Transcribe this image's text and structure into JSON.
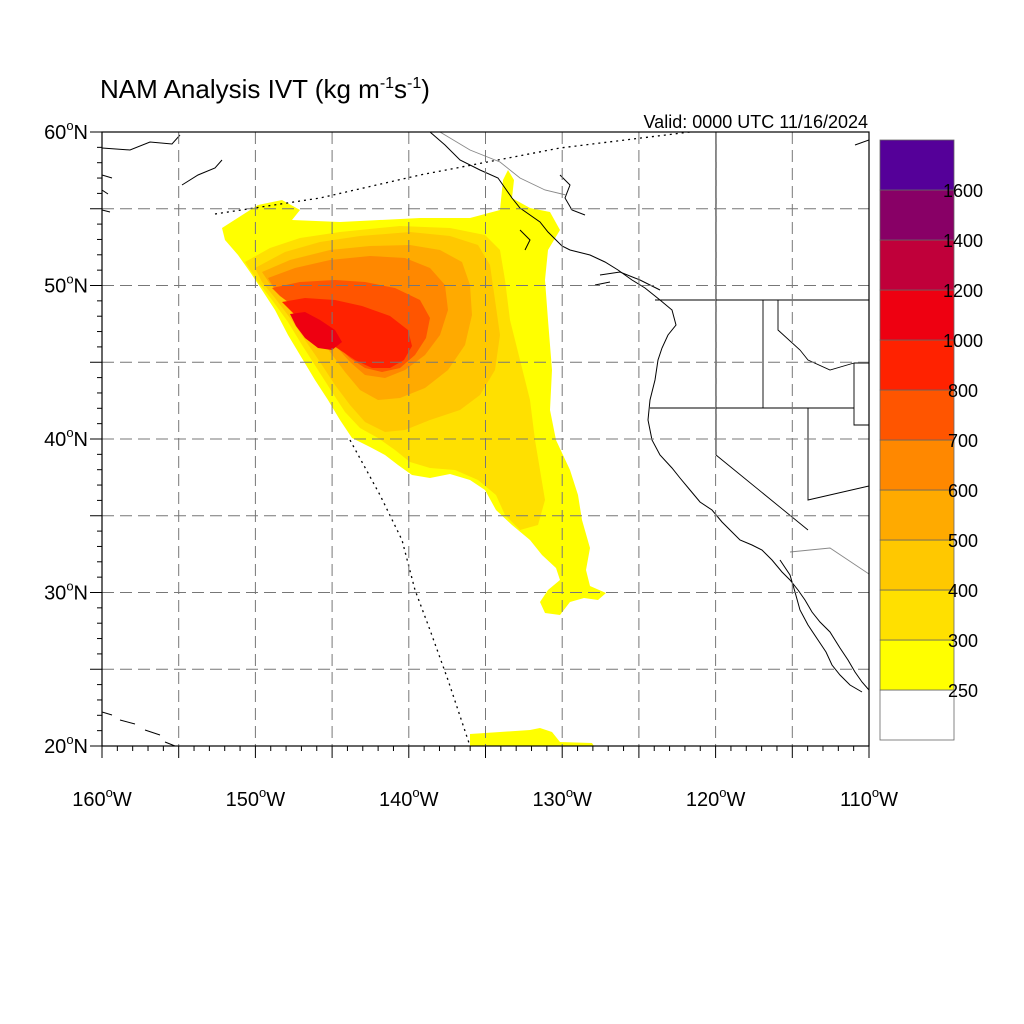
{
  "title": {
    "main": "NAM Analysis IVT (kg m",
    "sup1": "-1",
    "mid": "s",
    "sup2": "-1",
    "end": ")"
  },
  "valid_text": "Valid: 0000 UTC 11/16/2024",
  "map": {
    "lon_range": [
      -160,
      -110
    ],
    "lat_range": [
      20,
      60
    ],
    "grid_lon_step": 5,
    "grid_lat_step": 5,
    "lon_labels": [
      {
        "lon": -160,
        "text": "160",
        "hemi": "W"
      },
      {
        "lon": -150,
        "text": "150",
        "hemi": "W"
      },
      {
        "lon": -140,
        "text": "140",
        "hemi": "W"
      },
      {
        "lon": -130,
        "text": "130",
        "hemi": "W"
      },
      {
        "lon": -120,
        "text": "120",
        "hemi": "W"
      },
      {
        "lon": -110,
        "text": "110",
        "hemi": "W"
      }
    ],
    "lat_labels": [
      {
        "lat": 60,
        "text": "60",
        "hemi": "N"
      },
      {
        "lat": 50,
        "text": "50",
        "hemi": "N"
      },
      {
        "lat": 40,
        "text": "40",
        "hemi": "N"
      },
      {
        "lat": 30,
        "text": "30",
        "hemi": "N"
      },
      {
        "lat": 20,
        "text": "20",
        "hemi": "N"
      }
    ],
    "degree_symbol": "o"
  },
  "colorbar": {
    "levels": [
      "250",
      "300",
      "400",
      "500",
      "600",
      "700",
      "800",
      "1000",
      "1200",
      "1400",
      "1600"
    ],
    "colors": [
      "#ffffff",
      "#ffff00",
      "#ffe000",
      "#ffc800",
      "#ffaa00",
      "#ff8800",
      "#ff5500",
      "#ff2200",
      "#ee0011",
      "#c0003a",
      "#880066",
      "#550099"
    ]
  }
}
